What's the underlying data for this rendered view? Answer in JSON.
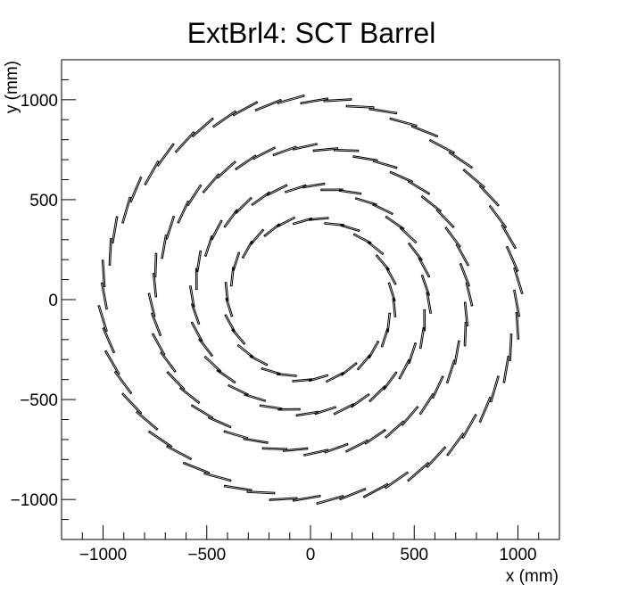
{
  "chart_data": {
    "type": "scatter",
    "title": "ExtBrl4: SCT Barrel",
    "xlabel": "x (mm)",
    "ylabel": "y (mm)",
    "xlim": [
      -1200,
      1200
    ],
    "ylim": [
      -1200,
      1200
    ],
    "x_ticks": [
      -1000,
      -500,
      0,
      500,
      1000
    ],
    "y_ticks": [
      -1000,
      -500,
      0,
      500,
      1000
    ],
    "x_tick_labels": [
      "−1000",
      "−500",
      "0",
      "500",
      "1000"
    ],
    "y_tick_labels": [
      "−1000",
      "−500",
      "0",
      "500",
      "1000"
    ],
    "grid": false,
    "legend": "none",
    "series": [
      {
        "radius": 400,
        "modules": 32,
        "tilt_deg": 11
      },
      {
        "radius": 565,
        "modules": 40,
        "tilt_deg": 11
      },
      {
        "radius": 760,
        "modules": 48,
        "tilt_deg": 11
      },
      {
        "radius": 1000,
        "modules": 56,
        "tilt_deg": 11
      }
    ],
    "colors": {
      "stroke": "#000000",
      "background": "#ffffff"
    }
  }
}
